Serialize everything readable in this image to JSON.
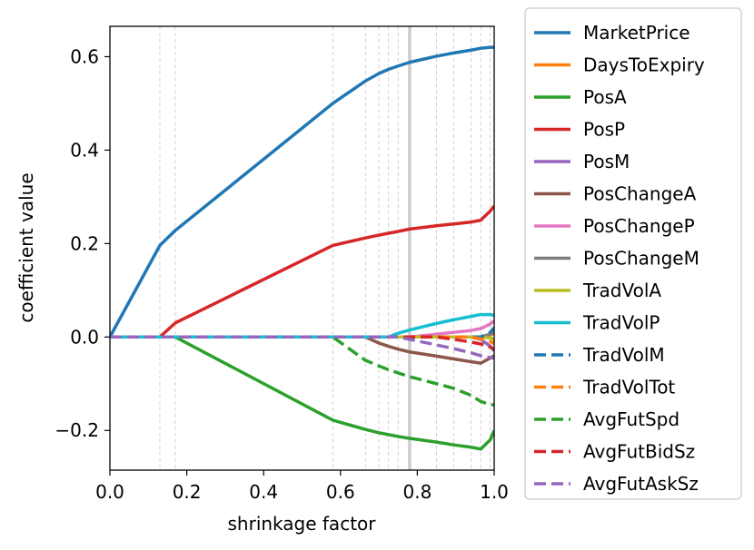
{
  "chart_data": {
    "type": "line",
    "title": "",
    "xlabel": "shrinkage factor",
    "ylabel": "coefficient value",
    "xlim": [
      0.0,
      1.0
    ],
    "ylim": [
      -0.285,
      0.665
    ],
    "xticks": [
      0.0,
      0.2,
      0.4,
      0.6,
      0.8,
      1.0
    ],
    "xtick_labels": [
      "0.0",
      "0.2",
      "0.4",
      "0.6",
      "0.8",
      "1.0"
    ],
    "yticks": [
      -0.2,
      0.0,
      0.2,
      0.4,
      0.6
    ],
    "ytick_labels": [
      "−0.2",
      "0.0",
      "0.2",
      "0.4",
      "0.6"
    ],
    "vlines": [
      0.13,
      0.17,
      0.58,
      0.665,
      0.7,
      0.725,
      0.75,
      0.78,
      0.85,
      0.895,
      0.94,
      0.965,
      0.99
    ],
    "highlight_vline": 0.78,
    "legend_position": "outside-right",
    "series": [
      {
        "name": "MarketPrice",
        "color": "#1f77b4",
        "dash": "solid",
        "x": [
          0,
          0.13,
          0.17,
          0.58,
          0.665,
          0.7,
          0.725,
          0.75,
          0.78,
          0.85,
          0.895,
          0.94,
          0.965,
          0.99,
          1.0
        ],
        "y": [
          0,
          0.196,
          0.228,
          0.5,
          0.548,
          0.564,
          0.573,
          0.58,
          0.588,
          0.601,
          0.608,
          0.614,
          0.618,
          0.62,
          0.62
        ]
      },
      {
        "name": "DaysToExpiry",
        "color": "#ff7f0e",
        "dash": "solid",
        "x": [
          0,
          0.965,
          0.99,
          1.0
        ],
        "y": [
          0,
          0,
          0.004,
          0.008
        ]
      },
      {
        "name": "PosA",
        "color": "#2ca02c",
        "dash": "solid",
        "x": [
          0,
          0.17,
          0.58,
          0.665,
          0.7,
          0.725,
          0.75,
          0.78,
          0.85,
          0.895,
          0.94,
          0.965,
          0.99,
          1.0
        ],
        "y": [
          0,
          0,
          -0.178,
          -0.198,
          -0.205,
          -0.209,
          -0.213,
          -0.217,
          -0.225,
          -0.231,
          -0.236,
          -0.24,
          -0.22,
          -0.2
        ]
      },
      {
        "name": "PosP",
        "color": "#d62728",
        "dash": "solid",
        "x": [
          0,
          0.13,
          0.17,
          0.58,
          0.665,
          0.7,
          0.725,
          0.75,
          0.78,
          0.85,
          0.895,
          0.94,
          0.965,
          0.99,
          1.0
        ],
        "y": [
          0,
          0,
          0.03,
          0.196,
          0.212,
          0.218,
          0.222,
          0.226,
          0.231,
          0.238,
          0.242,
          0.246,
          0.25,
          0.27,
          0.28
        ]
      },
      {
        "name": "PosM",
        "color": "#9467bd",
        "dash": "solid",
        "x": [
          0,
          0.94,
          0.965,
          0.99,
          1.0
        ],
        "y": [
          0,
          0,
          -0.005,
          -0.02,
          -0.03
        ]
      },
      {
        "name": "PosChangeA",
        "color": "#8c564b",
        "dash": "solid",
        "x": [
          0,
          0.665,
          0.7,
          0.725,
          0.75,
          0.78,
          0.85,
          0.895,
          0.94,
          0.965,
          0.99,
          1.0
        ],
        "y": [
          0,
          0,
          -0.013,
          -0.02,
          -0.026,
          -0.032,
          -0.041,
          -0.047,
          -0.053,
          -0.056,
          -0.045,
          -0.04
        ]
      },
      {
        "name": "PosChangeP",
        "color": "#e377c2",
        "dash": "solid",
        "x": [
          0,
          0.78,
          0.85,
          0.895,
          0.94,
          0.965,
          0.99,
          1.0
        ],
        "y": [
          0,
          0,
          0.006,
          0.01,
          0.014,
          0.018,
          0.028,
          0.035
        ]
      },
      {
        "name": "PosChangeM",
        "color": "#7f7f7f",
        "dash": "solid",
        "x": [
          0,
          0.965,
          0.99,
          1.0
        ],
        "y": [
          0,
          0,
          0.006,
          0.012
        ]
      },
      {
        "name": "TradVolA",
        "color": "#bcbd22",
        "dash": "solid",
        "x": [
          0,
          0.965,
          0.99,
          1.0
        ],
        "y": [
          0,
          0,
          -0.002,
          -0.006
        ]
      },
      {
        "name": "TradVolP",
        "color": "#17becf",
        "dash": "solid",
        "x": [
          0,
          0.725,
          0.75,
          0.78,
          0.85,
          0.895,
          0.94,
          0.965,
          0.99,
          1.0
        ],
        "y": [
          0,
          0,
          0.008,
          0.015,
          0.029,
          0.037,
          0.044,
          0.048,
          0.048,
          0.046
        ]
      },
      {
        "name": "TradVolM",
        "color": "#1f77b4",
        "dash": "dashed",
        "x": [
          0,
          0.965,
          0.99,
          1.0
        ],
        "y": [
          0,
          0,
          0.01,
          0.02
        ]
      },
      {
        "name": "TradVolTot",
        "color": "#ff7f0e",
        "dash": "dashed",
        "x": [
          0,
          0.94,
          0.965,
          0.99,
          1.0
        ],
        "y": [
          0,
          0,
          -0.004,
          -0.01,
          -0.014
        ]
      },
      {
        "name": "AvgFutSpd",
        "color": "#2ca02c",
        "dash": "dashed",
        "x": [
          0,
          0.58,
          0.665,
          0.7,
          0.725,
          0.75,
          0.78,
          0.85,
          0.895,
          0.94,
          0.965,
          0.99,
          1.0
        ],
        "y": [
          0,
          0,
          -0.05,
          -0.062,
          -0.07,
          -0.077,
          -0.085,
          -0.1,
          -0.11,
          -0.125,
          -0.138,
          -0.145,
          -0.145
        ]
      },
      {
        "name": "AvgFutBidSz",
        "color": "#d62728",
        "dash": "dashed",
        "x": [
          0,
          0.85,
          0.895,
          0.94,
          0.965,
          0.99,
          1.0
        ],
        "y": [
          0,
          0,
          -0.005,
          -0.011,
          -0.015,
          -0.022,
          -0.026
        ]
      },
      {
        "name": "AvgFutAskSz",
        "color": "#9467bd",
        "dash": "dashed",
        "x": [
          0,
          0.75,
          0.78,
          0.85,
          0.895,
          0.94,
          0.965,
          0.99,
          1.0
        ],
        "y": [
          0,
          0,
          -0.005,
          -0.017,
          -0.025,
          -0.034,
          -0.04,
          -0.044,
          -0.046
        ]
      }
    ]
  }
}
